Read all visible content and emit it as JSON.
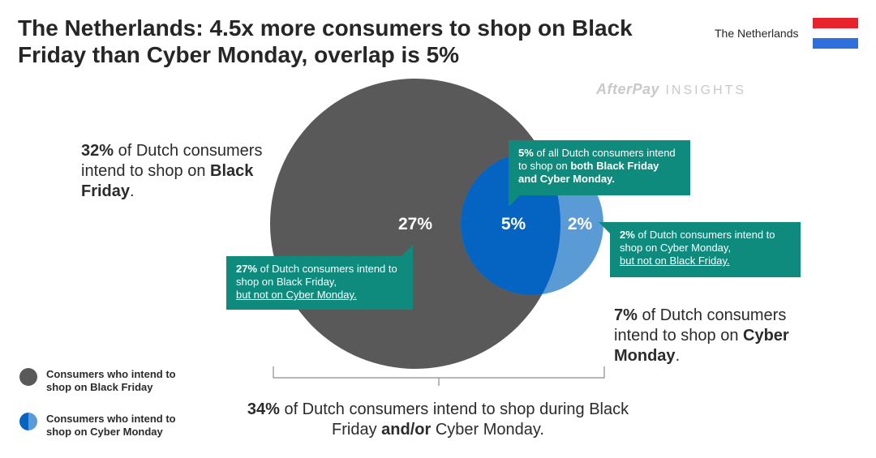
{
  "title": "The Netherlands: 4.5x more consumers to shop on Black Friday than Cyber Monday, overlap is 5%",
  "country_label": "The Netherlands",
  "flag_colors": [
    "#e8232b",
    "#ffffff",
    "#2e6fdc"
  ],
  "watermark": {
    "brand": "AfterPay",
    "suffix": "INSIGHTS"
  },
  "colors": {
    "black_friday": "#595959",
    "cyber_monday": "#5b9bd5",
    "overlap": "#0563c1",
    "callout": "#0f8b7d"
  },
  "venn": {
    "black_friday_only_label": "27%",
    "overlap_label": "5%",
    "cyber_monday_only_label": "2%",
    "black_friday_only_value": 27,
    "overlap_value": 5,
    "cyber_monday_only_value": 2
  },
  "black_friday_stat": {
    "pct": "32%",
    "text_a": " of Dutch consumers intend to shop on ",
    "bold": "Black Friday",
    "text_b": "."
  },
  "cyber_monday_stat": {
    "pct": "7%",
    "text_a": " of Dutch consumers intend to shop on ",
    "bold": "Cyber Monday",
    "text_b": "."
  },
  "total_stat": {
    "pct": "34%",
    "text_a": " of Dutch consumers intend to shop during Black Friday ",
    "bold": "and/or",
    "text_b": " Cyber Monday."
  },
  "callouts": {
    "overlap": {
      "pct": "5%",
      "text": " of all Dutch consumers intend to shop on ",
      "bold": "both Black Friday and Cyber Monday."
    },
    "cyber_monday_only": {
      "pct": "2%",
      "text": " of Dutch consumers intend to shop on Cyber Monday,",
      "underline": "but not on Black Friday."
    },
    "black_friday_only": {
      "pct": "27%",
      "text": " of Dutch consumers intend to shop on Black Friday,",
      "underline": "but not on Cyber Monday."
    }
  },
  "legend": [
    {
      "label": "Consumers who intend to shop on Black Friday"
    },
    {
      "label": "Consumers who intend to shop on Cyber Monday"
    }
  ]
}
